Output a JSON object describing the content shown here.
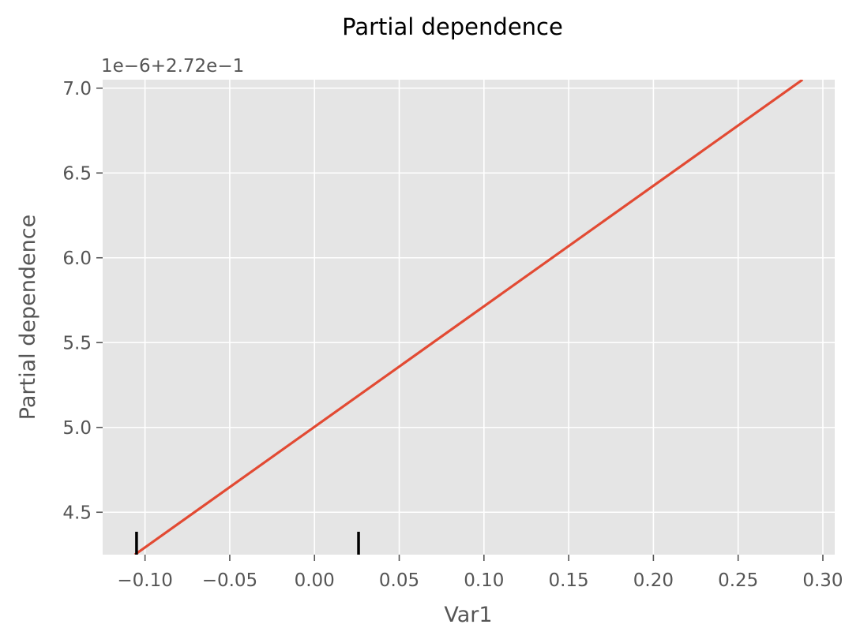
{
  "chart_data": {
    "type": "line",
    "title": "Partial dependence",
    "xlabel": "Var1",
    "ylabel": "Partial dependence",
    "y_offset_label": "1e−6+2.72e−1",
    "xlim": [
      -0.125,
      0.307
    ],
    "ylim": [
      4.25,
      7.05
    ],
    "x_ticks": [
      -0.1,
      -0.05,
      0.0,
      0.05,
      0.1,
      0.15,
      0.2,
      0.25,
      0.3
    ],
    "x_tick_labels": [
      "−0.10",
      "−0.05",
      "0.00",
      "0.05",
      "0.10",
      "0.15",
      "0.20",
      "0.25",
      "0.30"
    ],
    "y_ticks": [
      4.5,
      5.0,
      5.5,
      6.0,
      6.5,
      7.0
    ],
    "y_tick_labels": [
      "4.5",
      "5.0",
      "5.5",
      "6.0",
      "6.5",
      "7.0"
    ],
    "grid": true,
    "series": [
      {
        "x": [
          -0.106,
          0.288
        ],
        "y": [
          4.25,
          7.05
        ],
        "color": "#E24A33"
      }
    ],
    "rug_x": [
      -0.105,
      0.026
    ],
    "colors": {
      "background": "#E5E5E5",
      "grid": "#FFFFFF",
      "line": "#E24A33",
      "rug": "#000000"
    }
  }
}
